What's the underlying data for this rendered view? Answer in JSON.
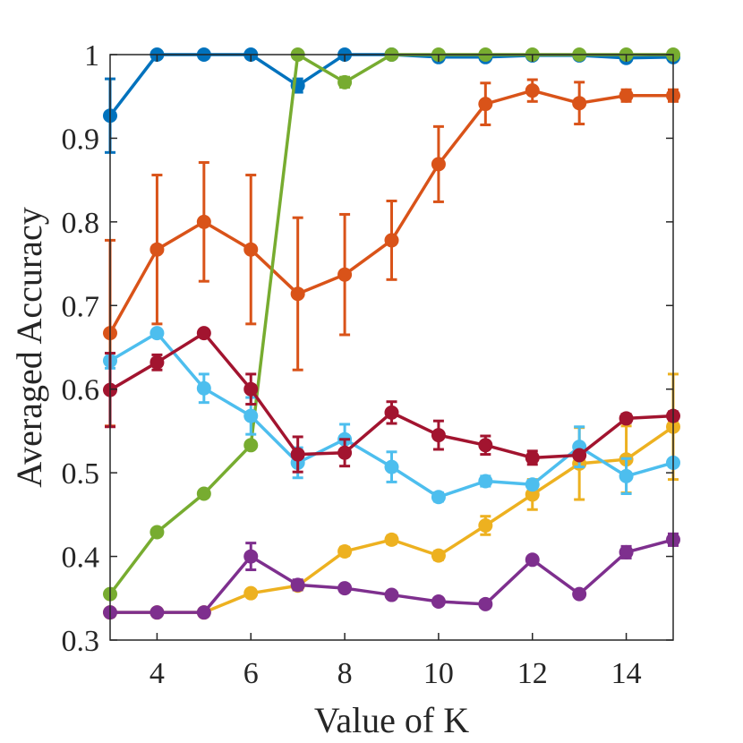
{
  "chart_data": {
    "type": "line",
    "title": "",
    "xlabel": "Value of K",
    "ylabel": "Averaged Accuracy",
    "xlim": [
      3,
      15
    ],
    "ylim": [
      0.3,
      1.0
    ],
    "xticks": [
      4,
      6,
      8,
      10,
      12,
      14
    ],
    "yticks": [
      0.3,
      0.4,
      0.5,
      0.6,
      0.7,
      0.8,
      0.9,
      1.0
    ],
    "ytick_labels": [
      "0.3",
      "0.4",
      "0.5",
      "0.6",
      "0.7",
      "0.8",
      "0.9",
      "1"
    ],
    "grid": false,
    "legend": "none",
    "x": [
      3,
      4,
      5,
      6,
      7,
      8,
      9,
      10,
      11,
      12,
      13,
      14,
      15
    ],
    "series": [
      {
        "name": "series-blue",
        "color": "#0072BD",
        "values": [
          0.927,
          1.0,
          1.0,
          1.0,
          0.963,
          1.0,
          1.0,
          0.997,
          0.997,
          0.999,
          0.999,
          0.996,
          0.997
        ],
        "errors": [
          0.044,
          0.0,
          0.0,
          0.0,
          0.008,
          0.0,
          0.0,
          0.003,
          0.003,
          0.001,
          0.001,
          0.003,
          0.003
        ]
      },
      {
        "name": "series-orange",
        "color": "#D95319",
        "values": [
          0.667,
          0.767,
          0.8,
          0.767,
          0.714,
          0.737,
          0.778,
          0.869,
          0.941,
          0.957,
          0.942,
          0.951,
          0.951
        ],
        "errors": [
          0.111,
          0.089,
          0.071,
          0.089,
          0.091,
          0.072,
          0.047,
          0.045,
          0.025,
          0.013,
          0.025,
          0.007,
          0.007
        ]
      },
      {
        "name": "series-yellow",
        "color": "#EDB120",
        "values": [
          0.333,
          0.333,
          0.333,
          0.356,
          0.365,
          0.406,
          0.42,
          0.401,
          0.437,
          0.474,
          0.511,
          0.516,
          0.555
        ],
        "errors": [
          0.0,
          0.0,
          0.0,
          0.0,
          0.0,
          0.005,
          0.005,
          0.005,
          0.011,
          0.018,
          0.043,
          0.04,
          0.063
        ]
      },
      {
        "name": "series-purple",
        "color": "#7E2F8E",
        "values": [
          0.333,
          0.333,
          0.333,
          0.4,
          0.366,
          0.362,
          0.354,
          0.346,
          0.343,
          0.396,
          0.355,
          0.405,
          0.42
        ],
        "errors": [
          0.0,
          0.0,
          0.0,
          0.016,
          0.006,
          0.0,
          0.0,
          0.0,
          0.0,
          0.0,
          0.0,
          0.007,
          0.007
        ]
      },
      {
        "name": "series-green",
        "color": "#77AC30",
        "values": [
          0.355,
          0.429,
          0.475,
          0.533,
          1.0,
          0.967,
          1.0,
          1.0,
          1.0,
          1.0,
          1.0,
          1.0,
          1.0
        ],
        "errors": [
          0.0,
          0.0,
          0.003,
          0.0,
          0.0,
          0.006,
          0.0,
          0.0,
          0.0,
          0.0,
          0.0,
          0.0,
          0.0
        ]
      },
      {
        "name": "series-cyan",
        "color": "#4DBEEE",
        "values": [
          0.634,
          0.667,
          0.601,
          0.568,
          0.512,
          0.54,
          0.507,
          0.471,
          0.49,
          0.486,
          0.531,
          0.496,
          0.512
        ],
        "errors": [
          0.009,
          0.0,
          0.017,
          0.022,
          0.018,
          0.018,
          0.018,
          0.005,
          0.006,
          0.005,
          0.024,
          0.021,
          0.0
        ]
      },
      {
        "name": "series-crimson",
        "color": "#A2142F",
        "values": [
          0.599,
          0.632,
          0.667,
          0.6,
          0.522,
          0.524,
          0.572,
          0.545,
          0.533,
          0.518,
          0.521,
          0.565,
          0.568
        ],
        "errors": [
          0.044,
          0.009,
          0.0,
          0.018,
          0.021,
          0.016,
          0.013,
          0.017,
          0.011,
          0.008,
          0.0,
          0.005,
          0.005
        ]
      }
    ]
  }
}
